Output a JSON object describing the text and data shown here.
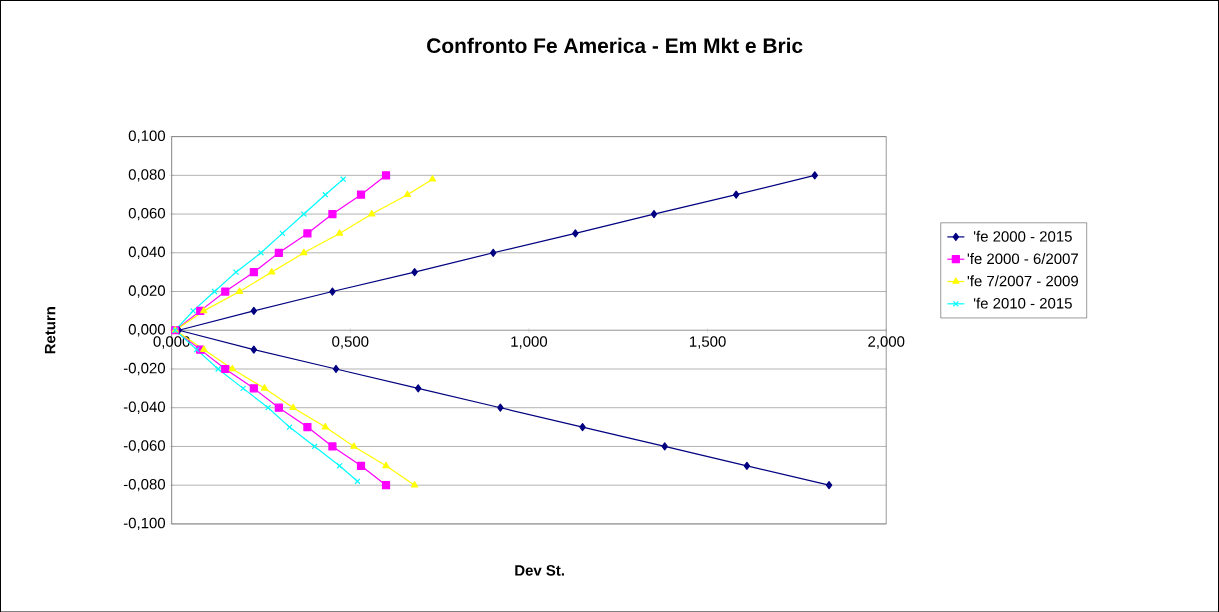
{
  "chart_data": {
    "type": "line",
    "title": "Confronto Fe America - Em Mkt e Bric",
    "xlabel": "Dev St.",
    "ylabel": "Return",
    "xlim": [
      0,
      2.0
    ],
    "ylim": [
      -0.1,
      0.1
    ],
    "xticks": [
      {
        "value": 0,
        "label": "0,000"
      },
      {
        "value": 0.5,
        "label": "0,500"
      },
      {
        "value": 1.0,
        "label": "1,000"
      },
      {
        "value": 1.5,
        "label": "1,500"
      },
      {
        "value": 2.0,
        "label": "2,000"
      }
    ],
    "yticks": [
      {
        "value": -0.1,
        "label": "-0,100"
      },
      {
        "value": -0.08,
        "label": "-0,080"
      },
      {
        "value": -0.06,
        "label": "-0,060"
      },
      {
        "value": -0.04,
        "label": "-0,040"
      },
      {
        "value": -0.02,
        "label": "-0,020"
      },
      {
        "value": 0,
        "label": "0,000"
      },
      {
        "value": 0.02,
        "label": "0,020"
      },
      {
        "value": 0.04,
        "label": "0,040"
      },
      {
        "value": 0.06,
        "label": "0,060"
      },
      {
        "value": 0.08,
        "label": "0,080"
      },
      {
        "value": 0.1,
        "label": "0,100"
      }
    ],
    "grid": "y",
    "legend": "right",
    "line_style": "solid",
    "series": [
      {
        "name": "'fe 2000 - 2015",
        "color": "#000080",
        "marker": "diamond",
        "x": [
          1.84,
          1.61,
          1.38,
          1.15,
          0.92,
          0.69,
          0.46,
          0.23,
          0.02,
          0.23,
          0.45,
          0.68,
          0.9,
          1.13,
          1.35,
          1.58,
          1.8
        ],
        "values": [
          -0.08,
          -0.07,
          -0.06,
          -0.05,
          -0.04,
          -0.03,
          -0.02,
          -0.01,
          0,
          0.01,
          0.02,
          0.03,
          0.04,
          0.05,
          0.06,
          0.07,
          0.08
        ]
      },
      {
        "name": "'fe 2000 - 6/2007",
        "color": "#ff00ff",
        "marker": "square",
        "x": [
          0.6,
          0.53,
          0.45,
          0.38,
          0.3,
          0.23,
          0.15,
          0.08,
          0.01,
          0.08,
          0.15,
          0.23,
          0.3,
          0.38,
          0.45,
          0.53,
          0.6
        ],
        "values": [
          -0.08,
          -0.07,
          -0.06,
          -0.05,
          -0.04,
          -0.03,
          -0.02,
          -0.01,
          0,
          0.01,
          0.02,
          0.03,
          0.04,
          0.05,
          0.06,
          0.07,
          0.08
        ]
      },
      {
        "name": "'fe 7/2007 - 2009",
        "color": "#ffff00",
        "marker": "triangle",
        "x": [
          0.68,
          0.6,
          0.51,
          0.43,
          0.34,
          0.26,
          0.17,
          0.09,
          0.01,
          0.09,
          0.19,
          0.28,
          0.37,
          0.47,
          0.56,
          0.66,
          0.73
        ],
        "values": [
          -0.08,
          -0.07,
          -0.06,
          -0.05,
          -0.04,
          -0.03,
          -0.02,
          -0.01,
          0,
          0.01,
          0.02,
          0.03,
          0.04,
          0.05,
          0.06,
          0.07,
          0.078
        ]
      },
      {
        "name": "'fe 2010 - 2015",
        "color": "#00ffff",
        "marker": "cross",
        "x": [
          0.52,
          0.47,
          0.4,
          0.33,
          0.27,
          0.2,
          0.13,
          0.07,
          0.01,
          0.06,
          0.12,
          0.18,
          0.25,
          0.31,
          0.37,
          0.43,
          0.48
        ],
        "values": [
          -0.078,
          -0.07,
          -0.06,
          -0.05,
          -0.04,
          -0.03,
          -0.02,
          -0.01,
          0,
          0.01,
          0.02,
          0.03,
          0.04,
          0.05,
          0.06,
          0.07,
          0.078
        ]
      }
    ]
  }
}
